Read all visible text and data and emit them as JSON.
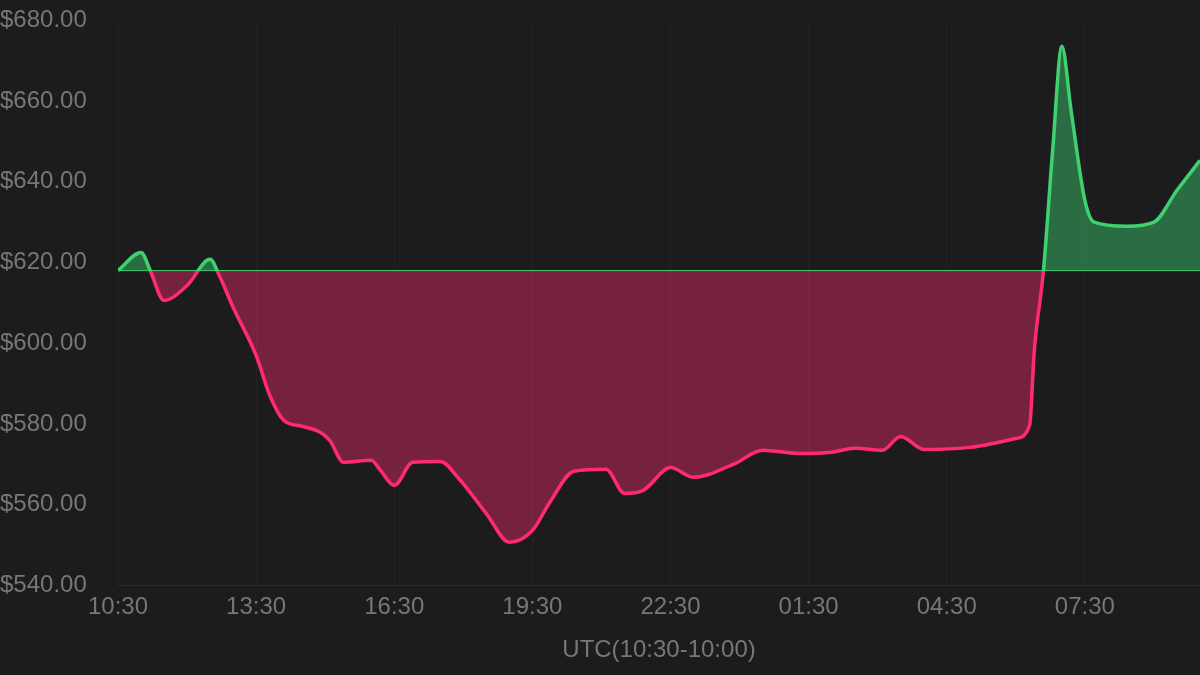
{
  "chart_data": {
    "type": "area",
    "xlabel": "UTC(10:30-10:00)",
    "x": [
      "--01-01T10:30",
      "--01-01T11:00",
      "--01-01T11:12",
      "--01-01T11:30",
      "--01-01T12:00",
      "--01-01T12:30",
      "--01-01T12:42",
      "--01-01T13:00",
      "--01-01T13:30",
      "--01-01T13:48",
      "--01-01T14:06",
      "--01-01T14:30",
      "--01-01T14:54",
      "--01-01T15:06",
      "--01-01T15:24",
      "--01-01T16:00",
      "--01-01T16:12",
      "--01-01T16:30",
      "--01-01T16:54",
      "--01-01T17:30",
      "--01-01T17:54",
      "--01-01T18:30",
      "--01-01T19:00",
      "--01-01T19:30",
      "--01-01T19:54",
      "--01-01T20:24",
      "--01-01T21:06",
      "--01-01T21:30",
      "--01-01T21:54",
      "--01-01T22:30",
      "--01-01T23:00",
      "--01-01T23:54",
      "--01-02T00:30",
      "--01-02T01:18",
      "--01-02T02:00",
      "--01-02T02:30",
      "--01-02T03:06",
      "--01-02T03:30",
      "--01-02T04:00",
      "--01-02T05:00",
      "--01-02T05:36",
      "--01-02T06:00",
      "--01-02T06:18",
      "--01-02T06:24",
      "--01-02T06:36",
      "--01-02T06:48",
      "--01-02T07:00",
      "--01-02T07:12",
      "--01-02T07:30",
      "--01-02T07:42",
      "--01-02T08:24",
      "--01-02T09:00",
      "--01-02T09:30",
      "--01-02T10:00"
    ],
    "series": [
      {
        "color": "#ff2a70",
        "values": [
          618,
          622.5,
          618,
          610.6,
          614.3,
          620.8,
          616.8,
          608.9,
          597,
          587,
          580.9,
          579.4,
          577.9,
          575.9,
          570.5,
          571,
          568.5,
          564.8,
          570.5,
          570.7,
          566.5,
          557.8,
          550.7,
          553.6,
          561,
          568.3,
          568.8,
          562.8,
          563.5,
          569.2,
          566.8,
          570.2,
          573.5,
          572.7,
          573,
          574,
          573.5,
          576.9,
          573.7,
          574.2,
          575.4,
          576.4,
          579.7,
          598,
          618,
          647.8,
          673.6,
          657.7,
          635.4,
          630,
          629,
          630,
          637.9,
          645.3
        ]
      }
    ],
    "ref_lines": [
      {
        "axis": "y",
        "value": 618,
        "color": "#3fd070"
      }
    ],
    "xlim": [
      "--01-01T10:30",
      "--01-02T10:00"
    ],
    "xticks": [
      {
        "value": "--01-01T10:30",
        "label": "10:30"
      },
      {
        "value": "--01-01T13:30",
        "label": "13:30"
      },
      {
        "value": "--01-01T16:30",
        "label": "16:30"
      },
      {
        "value": "--01-01T19:30",
        "label": "19:30"
      },
      {
        "value": "--01-01T22:30",
        "label": "22:30"
      },
      {
        "value": "--01-02T01:30",
        "label": "01:30"
      },
      {
        "value": "--01-02T04:30",
        "label": "04:30"
      },
      {
        "value": "--01-02T07:30",
        "label": "07:30"
      }
    ],
    "ylim": [
      540,
      680
    ],
    "yticks": [
      {
        "value": 540,
        "label": "$540.00"
      },
      {
        "value": 560,
        "label": "$560.00"
      },
      {
        "value": 580,
        "label": "$580.00"
      },
      {
        "value": 600,
        "label": "$600.00"
      },
      {
        "value": 620,
        "label": "$620.00"
      },
      {
        "value": 640,
        "label": "$640.00"
      },
      {
        "value": 660,
        "label": "$660.00"
      },
      {
        "value": 680,
        "label": "$680.00"
      }
    ],
    "grid": "x",
    "legend": false,
    "marker": "none",
    "line_style": "solid"
  }
}
